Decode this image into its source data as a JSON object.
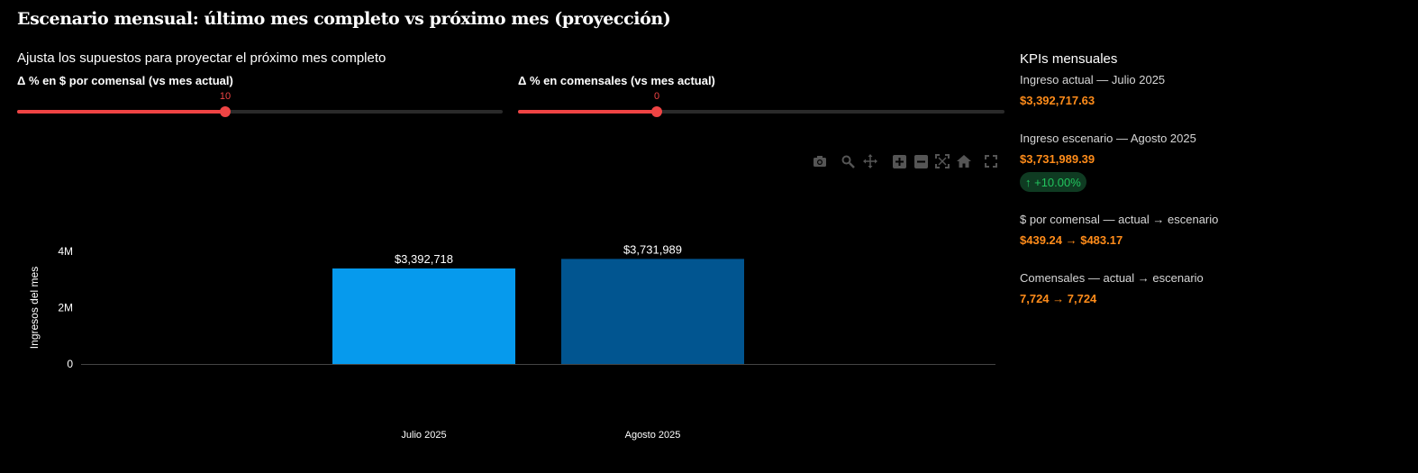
{
  "title": "Escenario mensual: último mes completo vs próximo mes (proyección)",
  "controls": {
    "heading": "Ajusta los supuestos para proyectar el próximo mes completo",
    "price_slider": {
      "label": "Δ % en $ por comensal (vs mes actual)",
      "value": 10,
      "fill_fraction": 0.428
    },
    "diners_slider": {
      "label": "Δ % en comensales (vs mes actual)",
      "value": 0,
      "fill_fraction": 0.285
    }
  },
  "toolbar": {
    "icons": [
      "camera-icon",
      "zoom-icon",
      "pan-icon",
      "zoom-in-icon",
      "zoom-out-icon",
      "autoscale-icon",
      "reset-axes-icon",
      "fullscreen-icon"
    ]
  },
  "chart_data": {
    "type": "bar",
    "categories": [
      "Julio 2025",
      "Agosto 2025"
    ],
    "values": [
      3392717.63,
      3731989.39
    ],
    "data_labels": [
      "$3,392,718",
      "$3,731,989"
    ],
    "colors": [
      "#069aed",
      "#015590"
    ],
    "ylabel": "Ingresos del mes",
    "xlabel": "",
    "ylim": [
      0,
      4000000
    ],
    "yticks": [
      {
        "value": 0,
        "label": "0"
      },
      {
        "value": 2000000,
        "label": "2M"
      },
      {
        "value": 4000000,
        "label": "4M"
      }
    ],
    "grid": false
  },
  "kpis": {
    "heading": "KPIs mensuales",
    "current_revenue": {
      "label": "Ingreso actual — Julio 2025",
      "value": "$3,392,717.63"
    },
    "scenario_revenue": {
      "label": "Ingreso escenario — Agosto 2025",
      "value": "$3,731,989.39",
      "delta": "↑ +10.00%"
    },
    "per_diner": {
      "label": "$ por comensal — actual → escenario",
      "value": "$439.24 → $483.17"
    },
    "diners": {
      "label": "Comensales — actual → escenario",
      "value": "7,724 → 7,724"
    }
  },
  "colors": {
    "accent": "#ef4444",
    "kpi_value": "#ff8c1a",
    "badge_text": "#22c55e",
    "badge_bg": "#0f3b22"
  }
}
